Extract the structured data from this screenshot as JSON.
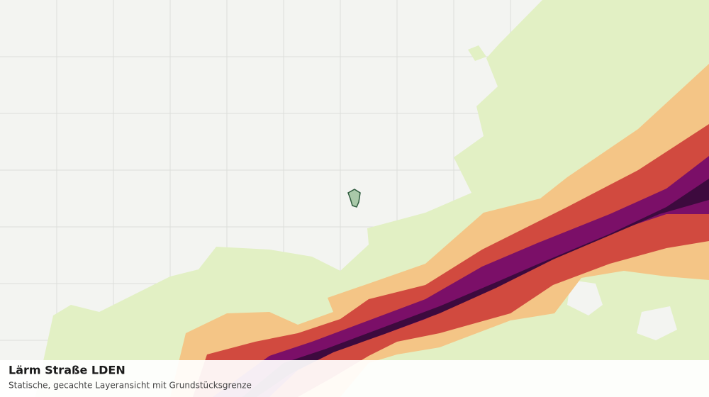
{
  "map": {
    "title": "Lärm Straße LDEN",
    "subtitle": "Statische, gecachte Layeransicht mit Grundstücksgrenze"
  }
}
